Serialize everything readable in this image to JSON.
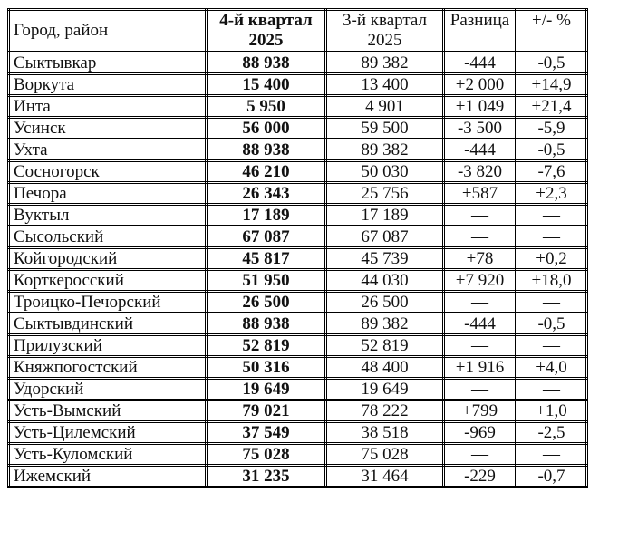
{
  "headers": [
    "Город, район",
    "4-й квартал 2025",
    "3-й квартал 2025",
    "Разница",
    "+/- %"
  ],
  "header_lines": {
    "q4_line1": "4-й квартал",
    "q4_line2": "2025",
    "q3_line1": "3-й квартал",
    "q3_line2": "2025"
  },
  "rows": [
    {
      "name": "Сыктывкар",
      "q4": "88 938",
      "q3": "89 382",
      "diff": "-444",
      "pct": "-0,5"
    },
    {
      "name": "Воркута",
      "q4": "15 400",
      "q3": "13 400",
      "diff": "+2 000",
      "pct": "+14,9"
    },
    {
      "name": "Инта",
      "q4": "5 950",
      "q3": "4 901",
      "diff": "+1 049",
      "pct": "+21,4"
    },
    {
      "name": "Усинск",
      "q4": "56 000",
      "q3": "59 500",
      "diff": "-3 500",
      "pct": "-5,9"
    },
    {
      "name": "Ухта",
      "q4": "88 938",
      "q3": "89 382",
      "diff": "-444",
      "pct": "-0,5"
    },
    {
      "name": "Сосногорск",
      "q4": "46 210",
      "q3": "50 030",
      "diff": "-3 820",
      "pct": "-7,6"
    },
    {
      "name": "Печора",
      "q4": "26 343",
      "q3": "25 756",
      "diff": "+587",
      "pct": "+2,3"
    },
    {
      "name": "Вуктыл",
      "q4": "17 189",
      "q3": "17 189",
      "diff": "—",
      "pct": "—"
    },
    {
      "name": "Сысольский",
      "q4": "67 087",
      "q3": "67 087",
      "diff": "—",
      "pct": "—"
    },
    {
      "name": "Койгородский",
      "q4": "45 817",
      "q3": "45 739",
      "diff": "+78",
      "pct": "+0,2"
    },
    {
      "name": "Корткеросский",
      "q4": "51 950",
      "q3": "44 030",
      "diff": "+7 920",
      "pct": "+18,0"
    },
    {
      "name": "Троицко-Печорский",
      "q4": "26 500",
      "q3": "26 500",
      "diff": "—",
      "pct": "—"
    },
    {
      "name": "Сыктывдинский",
      "q4": "88 938",
      "q3": "89 382",
      "diff": "-444",
      "pct": "-0,5"
    },
    {
      "name": "Прилузский",
      "q4": "52 819",
      "q3": "52 819",
      "diff": "—",
      "pct": "—"
    },
    {
      "name": "Княжпогостский",
      "q4": "50 316",
      "q3": "48 400",
      "diff": "+1 916",
      "pct": "+4,0"
    },
    {
      "name": "Удорский",
      "q4": "19 649",
      "q3": "19 649",
      "diff": "—",
      "pct": "—"
    },
    {
      "name": "Усть-Вымский",
      "q4": "79 021",
      "q3": "78 222",
      "diff": "+799",
      "pct": "+1,0"
    },
    {
      "name": "Усть-Цилемский",
      "q4": "37 549",
      "q3": "38 518",
      "diff": "-969",
      "pct": "-2,5"
    },
    {
      "name": "Усть-Куломский",
      "q4": "75 028",
      "q3": "75 028",
      "diff": "—",
      "pct": "—"
    },
    {
      "name": "Ижемский",
      "q4": "31 235",
      "q3": "31 464",
      "diff": "-229",
      "pct": "-0,7"
    }
  ]
}
